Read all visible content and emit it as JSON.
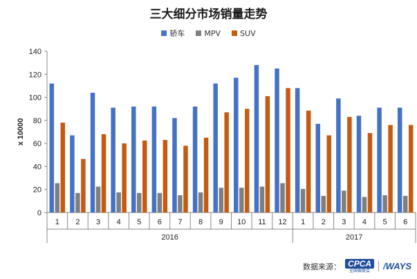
{
  "title": "三大细分市场销量走势",
  "legend": [
    {
      "label": "轿车",
      "color": "#4472C4"
    },
    {
      "label": "MPV",
      "color": "#7F7F7F"
    },
    {
      "label": "SUV",
      "color": "#C55A11"
    }
  ],
  "footer": {
    "source_label": "数据来源：",
    "cpca_mark": "CPCA",
    "cpca_sub": "全国乘联会",
    "ways_slash": "/",
    "ways_text": "WAYS"
  },
  "chart_data": {
    "type": "bar",
    "title": "三大细分市场销量走势",
    "ylabel": "x 10000",
    "xlabel": "",
    "ylim": [
      0,
      140
    ],
    "yticks": [
      0,
      20,
      40,
      60,
      80,
      100,
      120,
      140
    ],
    "grid": false,
    "legend_position": "top",
    "categories": [
      "1",
      "2",
      "3",
      "4",
      "5",
      "6",
      "7",
      "8",
      "9",
      "10",
      "11",
      "12",
      "1",
      "2",
      "3",
      "4",
      "5",
      "6"
    ],
    "groups": [
      {
        "label": "2016",
        "count": 12
      },
      {
        "label": "2017",
        "count": 6
      }
    ],
    "series": [
      {
        "name": "轿车",
        "color": "#4472C4",
        "values": [
          112,
          67,
          104,
          91,
          92,
          92,
          82,
          92,
          112,
          117,
          128,
          125,
          108,
          77,
          99,
          84,
          91,
          91
        ]
      },
      {
        "name": "MPV",
        "color": "#7F7F7F",
        "values": [
          25.5,
          17,
          22.5,
          17.5,
          17,
          17,
          15,
          17.5,
          21.5,
          21.5,
          22.5,
          25.5,
          20.5,
          14.5,
          19,
          13.5,
          15,
          14.5
        ]
      },
      {
        "name": "SUV",
        "color": "#C55A11",
        "values": [
          78,
          46.5,
          68,
          60,
          62.5,
          63,
          58,
          65,
          87,
          90,
          101,
          108,
          88.5,
          67,
          83,
          69,
          76,
          76
        ]
      }
    ]
  }
}
